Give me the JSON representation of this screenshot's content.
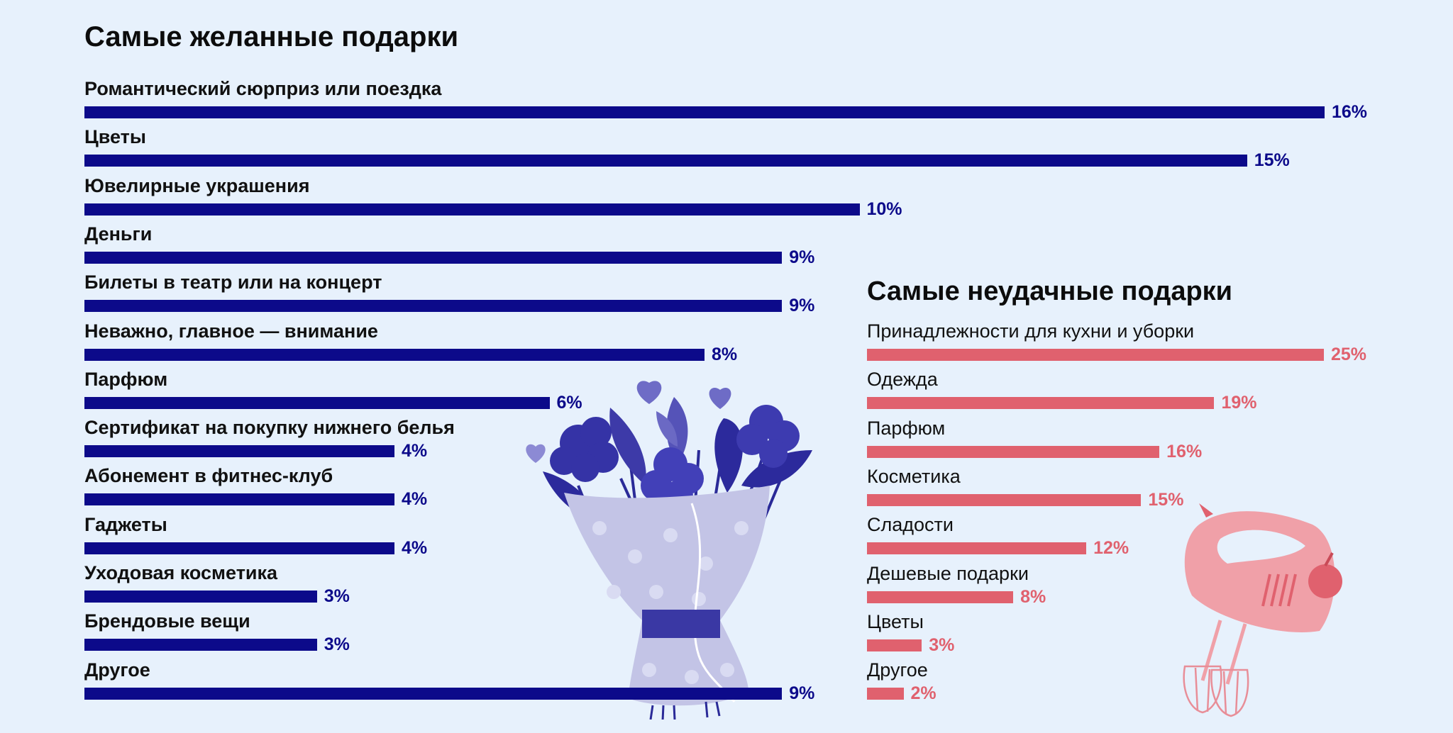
{
  "colors": {
    "background": "#e7f1fc",
    "desired_bar": "#0c0a8a",
    "failed_bar": "#e0616e"
  },
  "chart_data": [
    {
      "type": "bar",
      "orientation": "horizontal",
      "title": "Самые желанные подарки",
      "categories": [
        "Романтический сюрприз или поездка",
        "Цветы",
        "Ювелирные украшения",
        "Деньги",
        "Билеты в театр или на концерт",
        "Неважно, главное — внимание",
        "Парфюм",
        "Сертификат на покупку нижнего белья",
        "Абонемент в фитнес-клуб",
        "Гаджеты",
        "Уходовая косметика",
        "Брендовые вещи",
        "Другое"
      ],
      "values": [
        16,
        15,
        10,
        9,
        9,
        8,
        6,
        4,
        4,
        4,
        3,
        3,
        9
      ],
      "value_labels": [
        "16%",
        "15%",
        "10%",
        "9%",
        "9%",
        "8%",
        "6%",
        "4%",
        "4%",
        "4%",
        "3%",
        "3%",
        "9%"
      ],
      "unit": "%",
      "xlim": [
        0,
        16
      ]
    },
    {
      "type": "bar",
      "orientation": "horizontal",
      "title": "Самые неудачные подарки",
      "categories": [
        "Принадлежности для кухни и уборки",
        "Одежда",
        "Парфюм",
        "Косметика",
        "Сладости",
        "Дешевые подарки",
        "Цветы",
        "Другое"
      ],
      "values": [
        25,
        19,
        16,
        15,
        12,
        8,
        3,
        2
      ],
      "value_labels": [
        "25%",
        "19%",
        "16%",
        "15%",
        "12%",
        "8%",
        "3%",
        "2%"
      ],
      "unit": "%",
      "xlim": [
        0,
        25
      ]
    }
  ],
  "decorations": [
    "flower-bouquet-illustration",
    "hand-mixer-illustration"
  ]
}
